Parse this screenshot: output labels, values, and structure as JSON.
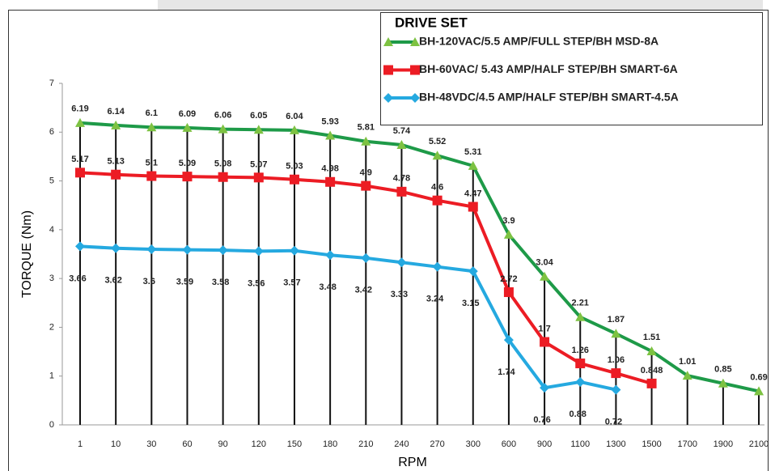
{
  "chart_data": {
    "type": "line",
    "legend_title": "DRIVE SET",
    "y_label": "TORQUE (Nm)",
    "x_label": "RPM",
    "categories": [
      "1",
      "10",
      "30",
      "60",
      "90",
      "120",
      "150",
      "180",
      "210",
      "240",
      "270",
      "300",
      "600",
      "900",
      "1100",
      "1300",
      "1500",
      "1700",
      "1900",
      "2100"
    ],
    "series": [
      {
        "name": "BH-120VAC/5.5 AMP/FULL STEP/BH MSD-8A",
        "color": "#1e9a48",
        "marker": "triangle",
        "values": [
          6.19,
          6.14,
          6.1,
          6.09,
          6.06,
          6.05,
          6.04,
          5.93,
          5.81,
          5.74,
          5.52,
          5.31,
          3.9,
          3.04,
          2.21,
          1.87,
          1.51,
          1.01,
          0.85,
          0.69
        ]
      },
      {
        "name": "BH-60VAC/ 5.43 AMP/HALF STEP/BH SMART-6A",
        "color": "#ec1c24",
        "marker": "square",
        "values": [
          5.17,
          5.13,
          5.1,
          5.09,
          5.08,
          5.07,
          5.03,
          4.98,
          4.9,
          4.78,
          4.6,
          4.47,
          2.72,
          1.7,
          1.26,
          1.06,
          0.848,
          null,
          null,
          null
        ]
      },
      {
        "name": "BH-48VDC/4.5 AMP/HALF STEP/BH SMART-4.5A",
        "color": "#25a9e0",
        "marker": "diamond",
        "values": [
          3.66,
          3.62,
          3.6,
          3.59,
          3.58,
          3.56,
          3.57,
          3.48,
          3.42,
          3.33,
          3.24,
          3.15,
          1.74,
          0.76,
          0.88,
          0.72,
          null,
          null,
          null,
          null
        ]
      }
    ],
    "ylim": [
      0,
      7
    ],
    "yticks": [
      0,
      1,
      2,
      3,
      4,
      5,
      6,
      7
    ],
    "grid": false
  }
}
